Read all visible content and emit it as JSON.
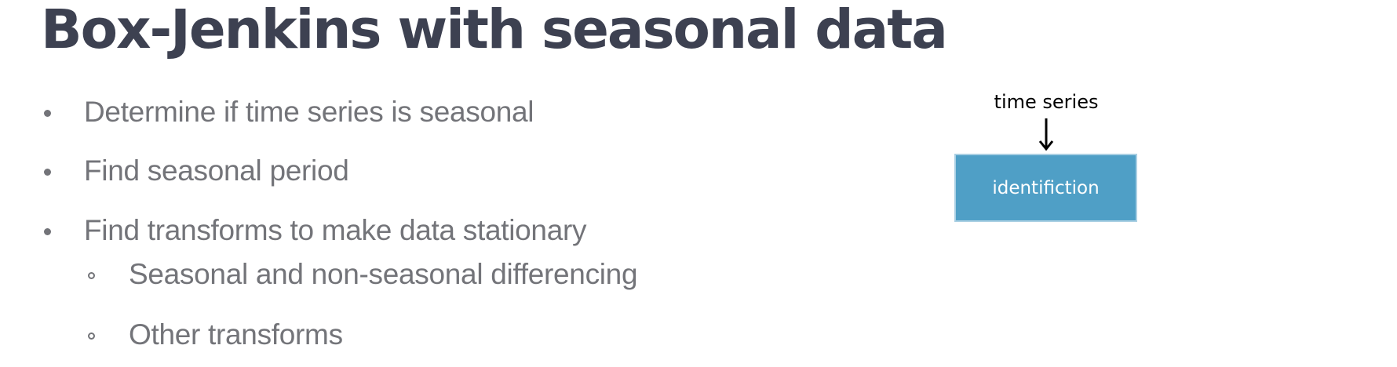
{
  "slide": {
    "title": "Box-Jenkins with seasonal data"
  },
  "bullets": [
    {
      "level": 1,
      "text": "Determine if time series is seasonal"
    },
    {
      "level": 1,
      "text": "Find seasonal period"
    },
    {
      "level": 1,
      "text": "Find transforms to make data stationary"
    },
    {
      "level": 2,
      "text": "Seasonal and non-seasonal differencing"
    },
    {
      "level": 2,
      "text": "Other transforms"
    }
  ],
  "diagram": {
    "input_label": "time series",
    "box_label": "identifiction",
    "box_color": "#4f9fc6",
    "box_border_color": "#a9cfe3",
    "arrow_color": "#000000"
  },
  "colors": {
    "title": "#3d4151",
    "body_text": "#737479",
    "background": "#ffffff"
  }
}
